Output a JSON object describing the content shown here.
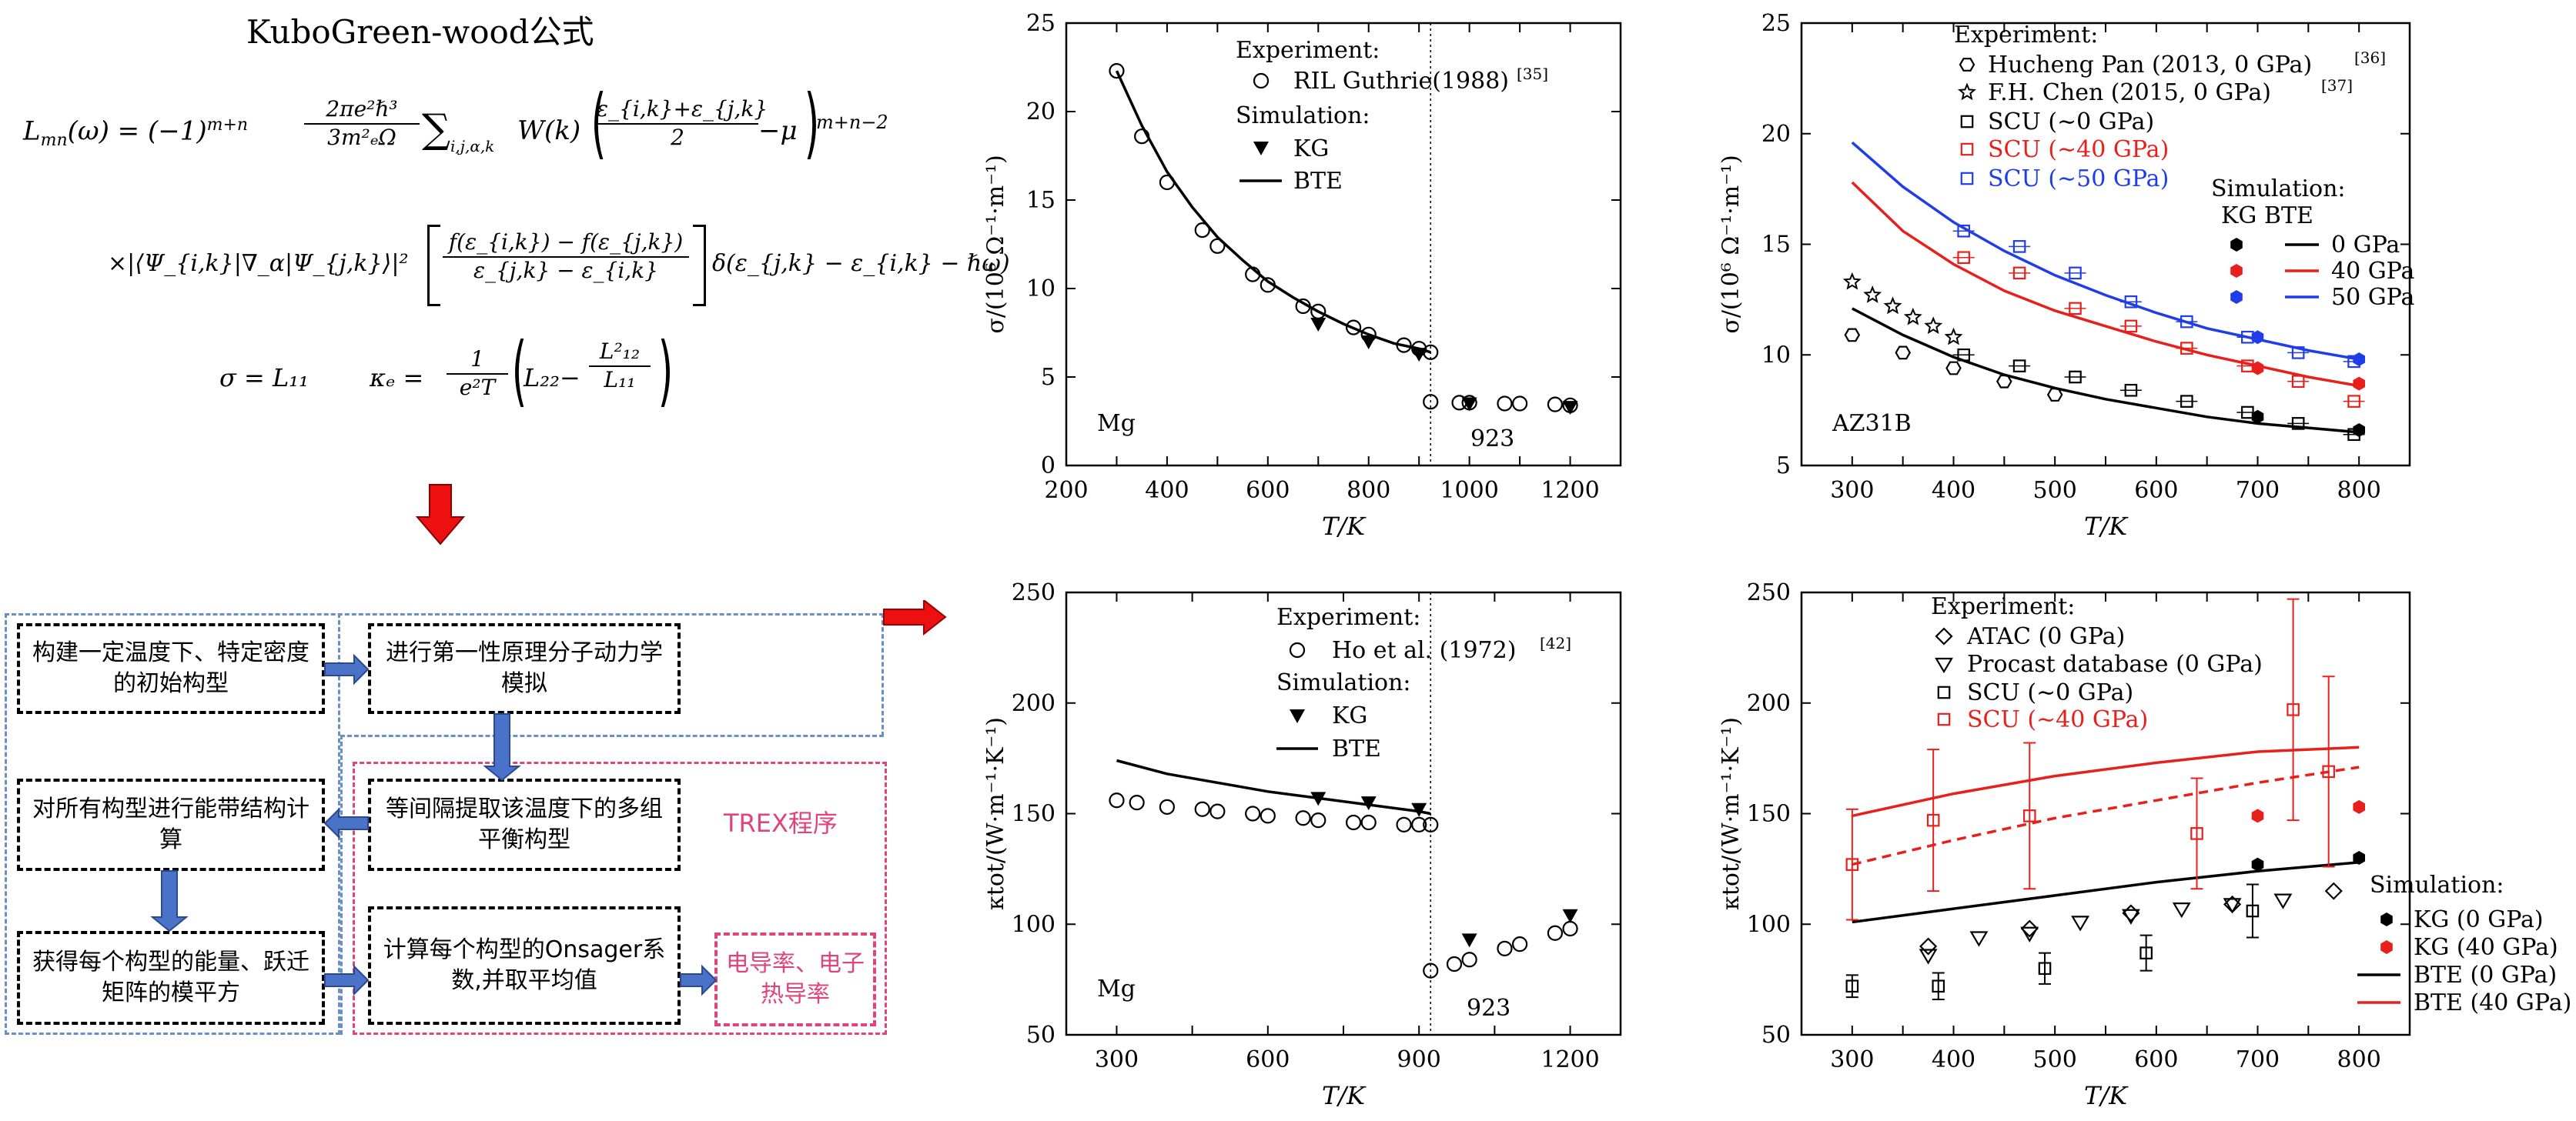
{
  "formula_panel": {
    "title": "KuboGreen-wood公式",
    "eq1_lhs": "L",
    "eq1_sub": "mn",
    "eq1_arg": "(ω) = (−1)",
    "eq1_exp": "m+n",
    "eq1_frac_num": "2πe²ℏ³",
    "eq1_frac_den": "3m²ₑΩ",
    "eq1_sum": "∑",
    "eq1_sum_sub": "i,j,α,k",
    "eq1_W": "W(k)",
    "eq1_paren_num": "ε_{i,k}+ε_{j,k}",
    "eq1_paren_den": "2",
    "eq1_mu": "−μ",
    "eq1_power": "m+n−2",
    "eq2_prefix": "×|⟨Ψ_{i,k}|∇_α|Ψ_{j,k}⟩|²",
    "eq2_num": "f(ε_{i,k}) − f(ε_{j,k})",
    "eq2_den": "ε_{j,k} − ε_{i,k}",
    "eq2_delta": "δ(ε_{j,k} − ε_{i,k} − ℏω)",
    "eq3_sigma": "σ = L₁₁",
    "eq3_kappa": "κₑ =",
    "eq3_frac_num": "1",
    "eq3_frac_den": "e²T",
    "eq3_paren_left": "L₂₂−",
    "eq3_paren_num": "L²₁₂",
    "eq3_paren_den": "L₁₁"
  },
  "flowchart": {
    "box1": "构建一定温度下、特定密度的初始构型",
    "box2": "进行第一性原理分子动力学模拟",
    "box3": "等间隔提取该温度下的多组平衡构型",
    "box4": "对所有构型进行能带结构计算",
    "box5": "获得每个构型的能量、跃迁矩阵的模平方",
    "box6": "计算每个构型的Onsager系数,并取平均值",
    "box7": "电导率、电子热导率",
    "trex_label": "TREX程序"
  },
  "colors": {
    "red": "#e8201c",
    "blue": "#1f3de8",
    "black": "#000000",
    "arrow_blue": "#4a72c8",
    "arrow_red": "#ee1010",
    "pink": "#e0457a",
    "region_blue": "#6a8fc8"
  },
  "chart_data": [
    {
      "id": "mg_sigma",
      "type": "scatter",
      "xlabel": "T/K",
      "ylabel": "σ/(10⁶ Ω⁻¹·m⁻¹)",
      "xlim": [
        200,
        1300
      ],
      "ylim": [
        0,
        25
      ],
      "xticks": [
        200,
        300,
        400,
        500,
        600,
        700,
        800,
        900,
        1000,
        1100,
        1200,
        1300
      ],
      "xticklabels": [
        "200",
        "",
        "400",
        "",
        "600",
        "",
        "800",
        "",
        "1000",
        "",
        "1200",
        ""
      ],
      "yticks": [
        0,
        5,
        10,
        15,
        20,
        25
      ],
      "annotation_material": "Mg",
      "annotation_melting": "923",
      "vline_x": 923,
      "legend": {
        "exp_header": "Experiment:",
        "exp_label": "RIL Guthrie(1988)",
        "exp_ref": "[35]",
        "sim_header": "Simulation:",
        "kg_label": "KG",
        "bte_label": "BTE"
      },
      "exp_points": [
        [
          300,
          22.3
        ],
        [
          350,
          18.6
        ],
        [
          400,
          16.0
        ],
        [
          470,
          13.3
        ],
        [
          500,
          12.4
        ],
        [
          570,
          10.8
        ],
        [
          600,
          10.2
        ],
        [
          670,
          9.0
        ],
        [
          700,
          8.7
        ],
        [
          770,
          7.8
        ],
        [
          800,
          7.4
        ],
        [
          870,
          6.8
        ],
        [
          900,
          6.6
        ],
        [
          923,
          6.4
        ],
        [
          923,
          3.6
        ],
        [
          980,
          3.55
        ],
        [
          1000,
          3.55
        ],
        [
          1070,
          3.5
        ],
        [
          1100,
          3.5
        ],
        [
          1170,
          3.45
        ],
        [
          1200,
          3.4
        ]
      ],
      "kg_points": [
        [
          700,
          8.0
        ],
        [
          800,
          7.0
        ],
        [
          900,
          6.3
        ],
        [
          1000,
          3.5
        ],
        [
          1200,
          3.3
        ]
      ],
      "bte_curve": [
        [
          300,
          22.3
        ],
        [
          350,
          19.2
        ],
        [
          400,
          16.6
        ],
        [
          450,
          14.6
        ],
        [
          500,
          12.9
        ],
        [
          550,
          11.6
        ],
        [
          600,
          10.4
        ],
        [
          650,
          9.5
        ],
        [
          700,
          8.7
        ],
        [
          750,
          8.0
        ],
        [
          800,
          7.4
        ],
        [
          850,
          6.9
        ],
        [
          900,
          6.6
        ],
        [
          923,
          6.4
        ]
      ]
    },
    {
      "id": "az31b_sigma",
      "type": "scatter",
      "xlabel": "T/K",
      "ylabel": "σ/(10⁶ Ω⁻¹·m⁻¹)",
      "xlim": [
        250,
        850
      ],
      "ylim": [
        5,
        25
      ],
      "xticks": [
        250,
        300,
        350,
        400,
        450,
        500,
        550,
        600,
        650,
        700,
        750,
        800,
        850
      ],
      "xticklabels": [
        "",
        "300",
        "",
        "400",
        "",
        "500",
        "",
        "600",
        "",
        "700",
        "",
        "800",
        ""
      ],
      "yticks": [
        5,
        10,
        15,
        20,
        25
      ],
      "annotation_material": "AZ31B",
      "legend": {
        "exp_header": "Experiment:",
        "hucheng": "Hucheng Pan (2013, 0 GPa)",
        "hucheng_ref": "[36]",
        "chen": "F.H. Chen (2015, 0 GPa)",
        "chen_ref": "[37]",
        "scu0": "SCU (∼0 GPa)",
        "scu40": "SCU (∼40 GPa)",
        "scu50": "SCU (∼50 GPa)",
        "sim_header": "Simulation:",
        "sim_cols": "KG  BTE",
        "p0": "0 GPa",
        "p40": "40 GPa",
        "p50": "50 GPa"
      },
      "hucheng_points": [
        [
          300,
          10.9
        ],
        [
          350,
          10.1
        ],
        [
          400,
          9.4
        ],
        [
          450,
          8.8
        ],
        [
          500,
          8.2
        ]
      ],
      "chen_points": [
        [
          300,
          13.3
        ],
        [
          320,
          12.7
        ],
        [
          340,
          12.2
        ],
        [
          360,
          11.7
        ],
        [
          380,
          11.3
        ],
        [
          400,
          10.8
        ]
      ],
      "scu0_points": [
        [
          410,
          10.0
        ],
        [
          465,
          9.5
        ],
        [
          520,
          9.0
        ],
        [
          575,
          8.4
        ],
        [
          630,
          7.9
        ],
        [
          690,
          7.4
        ],
        [
          740,
          6.9
        ],
        [
          795,
          6.4
        ]
      ],
      "scu40_points": [
        [
          410,
          14.4
        ],
        [
          465,
          13.7
        ],
        [
          520,
          12.1
        ],
        [
          575,
          11.3
        ],
        [
          630,
          10.3
        ],
        [
          690,
          9.5
        ],
        [
          740,
          8.8
        ],
        [
          795,
          7.9
        ]
      ],
      "scu50_points": [
        [
          410,
          15.6
        ],
        [
          465,
          14.9
        ],
        [
          520,
          13.7
        ],
        [
          575,
          12.4
        ],
        [
          630,
          11.5
        ],
        [
          690,
          10.8
        ],
        [
          740,
          10.1
        ],
        [
          795,
          9.7
        ]
      ],
      "kg0_points": [
        [
          700,
          7.2
        ],
        [
          800,
          6.6
        ]
      ],
      "kg40_points": [
        [
          700,
          9.4
        ],
        [
          800,
          8.7
        ]
      ],
      "kg50_points": [
        [
          700,
          10.8
        ],
        [
          800,
          9.8
        ]
      ],
      "bte0_curve": [
        [
          300,
          12.1
        ],
        [
          350,
          10.9
        ],
        [
          400,
          9.9
        ],
        [
          450,
          9.1
        ],
        [
          500,
          8.5
        ],
        [
          550,
          8.0
        ],
        [
          600,
          7.6
        ],
        [
          650,
          7.2
        ],
        [
          700,
          6.9
        ],
        [
          750,
          6.7
        ],
        [
          800,
          6.5
        ]
      ],
      "bte40_curve": [
        [
          300,
          17.8
        ],
        [
          350,
          15.6
        ],
        [
          400,
          14.1
        ],
        [
          450,
          12.9
        ],
        [
          500,
          12.0
        ],
        [
          550,
          11.3
        ],
        [
          600,
          10.6
        ],
        [
          650,
          10.0
        ],
        [
          700,
          9.5
        ],
        [
          750,
          9.0
        ],
        [
          800,
          8.6
        ]
      ],
      "bte50_curve": [
        [
          300,
          19.6
        ],
        [
          350,
          17.6
        ],
        [
          400,
          16.0
        ],
        [
          450,
          14.7
        ],
        [
          500,
          13.6
        ],
        [
          550,
          12.7
        ],
        [
          600,
          11.9
        ],
        [
          650,
          11.2
        ],
        [
          700,
          10.7
        ],
        [
          750,
          10.2
        ],
        [
          800,
          9.8
        ]
      ]
    },
    {
      "id": "mg_kappa",
      "type": "scatter",
      "xlabel": "T/K",
      "ylabel": "κtot/(W·m⁻¹·K⁻¹)",
      "xlim": [
        200,
        1300
      ],
      "ylim": [
        50,
        250
      ],
      "xticks": [
        300,
        450,
        600,
        750,
        900,
        1050,
        1200
      ],
      "xticklabels": [
        "300",
        "",
        "600",
        "",
        "900",
        "",
        "1200"
      ],
      "yticks": [
        50,
        100,
        150,
        200,
        250
      ],
      "annotation_material": "Mg",
      "annotation_melting": "923",
      "vline_x": 923,
      "legend": {
        "exp_header": "Experiment:",
        "exp_label": "Ho et al. (1972)",
        "exp_ref": "[42]",
        "sim_header": "Simulation:",
        "kg_label": "KG",
        "bte_label": "BTE"
      },
      "exp_points": [
        [
          300,
          156
        ],
        [
          340,
          155
        ],
        [
          400,
          153
        ],
        [
          470,
          152
        ],
        [
          500,
          151
        ],
        [
          570,
          150
        ],
        [
          600,
          149
        ],
        [
          670,
          148
        ],
        [
          700,
          147
        ],
        [
          770,
          146
        ],
        [
          800,
          146
        ],
        [
          870,
          145
        ],
        [
          900,
          145
        ],
        [
          923,
          145
        ],
        [
          923,
          79
        ],
        [
          970,
          82
        ],
        [
          1000,
          84
        ],
        [
          1070,
          89
        ],
        [
          1100,
          91
        ],
        [
          1170,
          96
        ],
        [
          1200,
          98
        ]
      ],
      "kg_points": [
        [
          700,
          157
        ],
        [
          800,
          155
        ],
        [
          900,
          152
        ],
        [
          1000,
          93
        ],
        [
          1200,
          104
        ]
      ],
      "bte_curve": [
        [
          300,
          174
        ],
        [
          400,
          168
        ],
        [
          500,
          164
        ],
        [
          600,
          160
        ],
        [
          700,
          157
        ],
        [
          800,
          154
        ],
        [
          900,
          151
        ],
        [
          923,
          150
        ]
      ]
    },
    {
      "id": "az31b_kappa",
      "type": "scatter",
      "xlabel": "T/K",
      "ylabel": "κtot/(W·m⁻¹·K⁻¹)",
      "xlim": [
        250,
        850
      ],
      "ylim": [
        50,
        250
      ],
      "xticks": [
        250,
        300,
        350,
        400,
        450,
        500,
        550,
        600,
        650,
        700,
        750,
        800,
        850
      ],
      "xticklabels": [
        "",
        "300",
        "",
        "400",
        "",
        "500",
        "",
        "600",
        "",
        "700",
        "",
        "800",
        ""
      ],
      "yticks": [
        50,
        100,
        150,
        200,
        250
      ],
      "legend": {
        "exp_header": "Experiment:",
        "atac": "ATAC (0 GPa)",
        "procast": "Procast database (0 GPa)",
        "scu0": "SCU (∼0 GPa)",
        "scu40": "SCU (∼40 GPa)",
        "sim_header": "Simulation:",
        "kg0": "KG (0 GPa)",
        "kg40": "KG (40 GPa)",
        "bte0": "BTE (0 GPa)",
        "bte40": "BTE (40 GPa)"
      },
      "atac_points": [
        [
          375,
          90
        ],
        [
          475,
          98
        ],
        [
          575,
          105
        ],
        [
          675,
          109
        ],
        [
          775,
          115
        ]
      ],
      "procast_points": [
        [
          375,
          86
        ],
        [
          425,
          94
        ],
        [
          475,
          96
        ],
        [
          525,
          101
        ],
        [
          575,
          104
        ],
        [
          625,
          107
        ],
        [
          675,
          109
        ],
        [
          725,
          111
        ]
      ],
      "scu0_points": [
        [
          300,
          72,
          5
        ],
        [
          385,
          72,
          6
        ],
        [
          490,
          80,
          7
        ],
        [
          590,
          87,
          8
        ],
        [
          695,
          106,
          12
        ]
      ],
      "scu40_points": [
        [
          300,
          127,
          25
        ],
        [
          380,
          147,
          32
        ],
        [
          475,
          149,
          33
        ],
        [
          640,
          141,
          25
        ],
        [
          735,
          197,
          50
        ],
        [
          770,
          169,
          43
        ]
      ],
      "kg0_points": [
        [
          700,
          127
        ],
        [
          800,
          130
        ]
      ],
      "kg40_points": [
        [
          700,
          149
        ],
        [
          800,
          153
        ]
      ],
      "bte0_curve": [
        [
          300,
          101
        ],
        [
          400,
          107
        ],
        [
          500,
          113
        ],
        [
          600,
          119
        ],
        [
          700,
          124
        ],
        [
          800,
          128
        ]
      ],
      "bte40_curve": [
        [
          300,
          149
        ],
        [
          400,
          159
        ],
        [
          500,
          167
        ],
        [
          600,
          173
        ],
        [
          700,
          178
        ],
        [
          800,
          180
        ]
      ],
      "dashed40_curve": [
        [
          300,
          127
        ],
        [
          400,
          138
        ],
        [
          500,
          148
        ],
        [
          600,
          156
        ],
        [
          700,
          164
        ],
        [
          800,
          171
        ]
      ]
    }
  ]
}
